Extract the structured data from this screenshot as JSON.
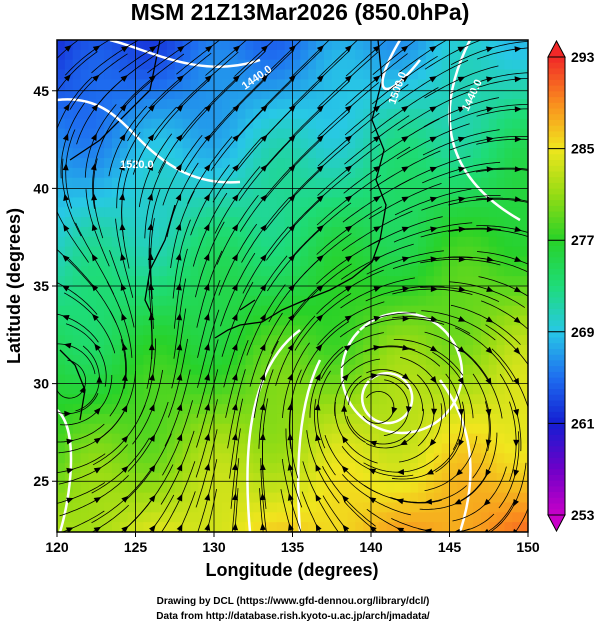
{
  "title": "MSM 21Z13Mar2026 (850.0hPa)",
  "x_label": "Longitude (degrees)",
  "y_label": "Latitude  (degrees)",
  "xlim": [
    120,
    150
  ],
  "xticks": [
    120,
    125,
    130,
    135,
    140,
    145,
    150
  ],
  "ylim": [
    22.4,
    47.6
  ],
  "yticks": [
    25,
    30,
    35,
    40,
    45
  ],
  "colorbar": {
    "lim": [
      253,
      293
    ],
    "ticks": [
      253,
      261,
      269,
      277,
      285,
      293
    ]
  },
  "contour_labels": [
    "1440.0",
    "1520.0",
    "1500.0",
    "1440.0"
  ],
  "credits": [
    "Drawing by DCL (https://www.gfd-dennou.org/library/dcl/)",
    "Data from http://database.rish.kyoto-u.ac.jp/arch/jmadata/"
  ]
}
